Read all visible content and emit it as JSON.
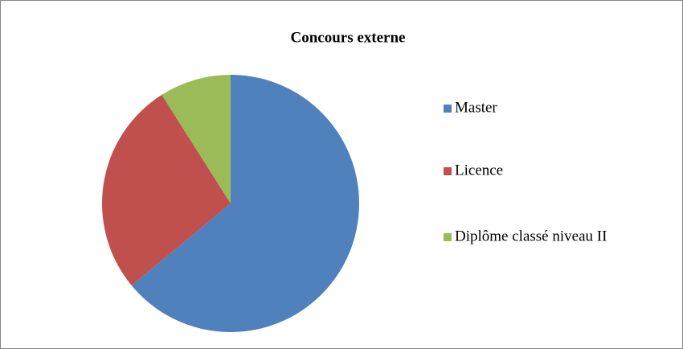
{
  "chart_data": {
    "type": "pie",
    "title": "Concours externe",
    "categories": [
      "Master",
      "Licence",
      "Diplôme classé niveau II"
    ],
    "values": [
      64,
      27,
      9
    ],
    "colors": [
      "#4f81bd",
      "#c0504d",
      "#9bbb59"
    ],
    "legend": "right"
  }
}
